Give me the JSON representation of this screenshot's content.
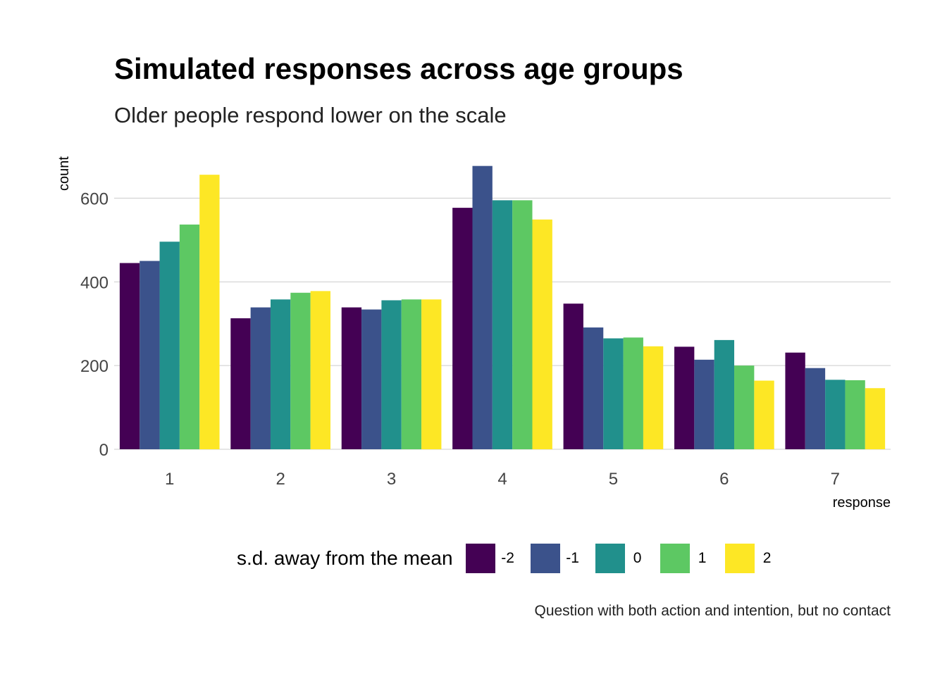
{
  "chart_data": {
    "type": "bar",
    "title": "Simulated responses across age groups",
    "subtitle": "Older people respond lower on the scale",
    "xlabel": "response",
    "ylabel": "count",
    "caption": "Question with both action and intention, but no contact",
    "categories": [
      "1",
      "2",
      "3",
      "4",
      "5",
      "6",
      "7"
    ],
    "ylim": [
      0,
      700
    ],
    "yticks": [
      0,
      200,
      400,
      600
    ],
    "grid": "horizontal",
    "legend_position": "bottom",
    "legend_title": "s.d. away from the mean",
    "series": [
      {
        "name": "-2",
        "color": "#440154",
        "values": [
          445,
          313,
          339,
          577,
          348,
          245,
          231
        ]
      },
      {
        "name": "-1",
        "color": "#3B528B",
        "values": [
          450,
          339,
          334,
          677,
          291,
          214,
          194
        ]
      },
      {
        "name": "0",
        "color": "#21908C",
        "values": [
          496,
          358,
          356,
          595,
          265,
          261,
          166
        ]
      },
      {
        "name": "1",
        "color": "#5DC863",
        "values": [
          537,
          374,
          358,
          595,
          267,
          200,
          165
        ]
      },
      {
        "name": "2",
        "color": "#FDE725",
        "values": [
          656,
          378,
          358,
          549,
          246,
          164,
          146
        ]
      }
    ]
  }
}
